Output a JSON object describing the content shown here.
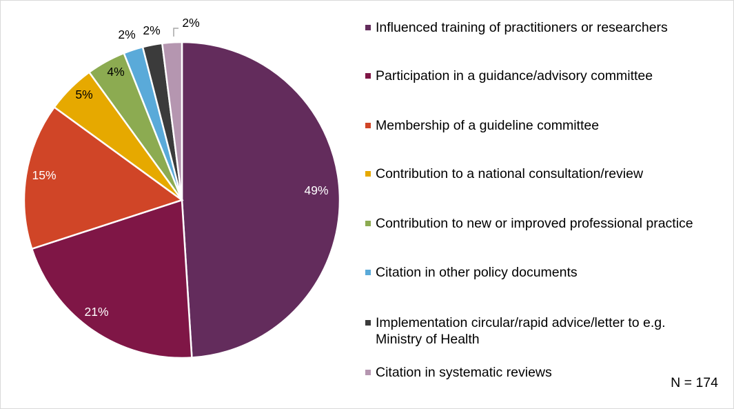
{
  "chart_data": {
    "type": "pie",
    "values": [
      49,
      21,
      15,
      5,
      4,
      2,
      2,
      2
    ],
    "slice_labels": [
      "49%",
      "21%",
      "15%",
      "5%",
      "4%",
      "2%",
      "2%",
      "2%"
    ],
    "categories": [
      "Influenced training of practitioners or researchers",
      "Participation in a guidance/advisory committee",
      "Membership of a guideline committee",
      "Contribution to a national consultation/review",
      "Contribution to new or improved professional practice",
      "Citation in other policy documents",
      "Implementation circular/rapid advice/letter to e.g. Ministry of Health",
      "Citation in systematic reviews"
    ],
    "colors": [
      "#632c5c",
      "#7f1646",
      "#d04527",
      "#e6a900",
      "#8cab51",
      "#5aaad9",
      "#3b3b3b",
      "#b596b0"
    ],
    "label_colors": [
      "#ffffff",
      "#ffffff",
      "#ffffff",
      "#000000",
      "#000000",
      "#000000",
      "#000000",
      "#000000"
    ],
    "legend_position": "right",
    "note": "N = 174"
  }
}
